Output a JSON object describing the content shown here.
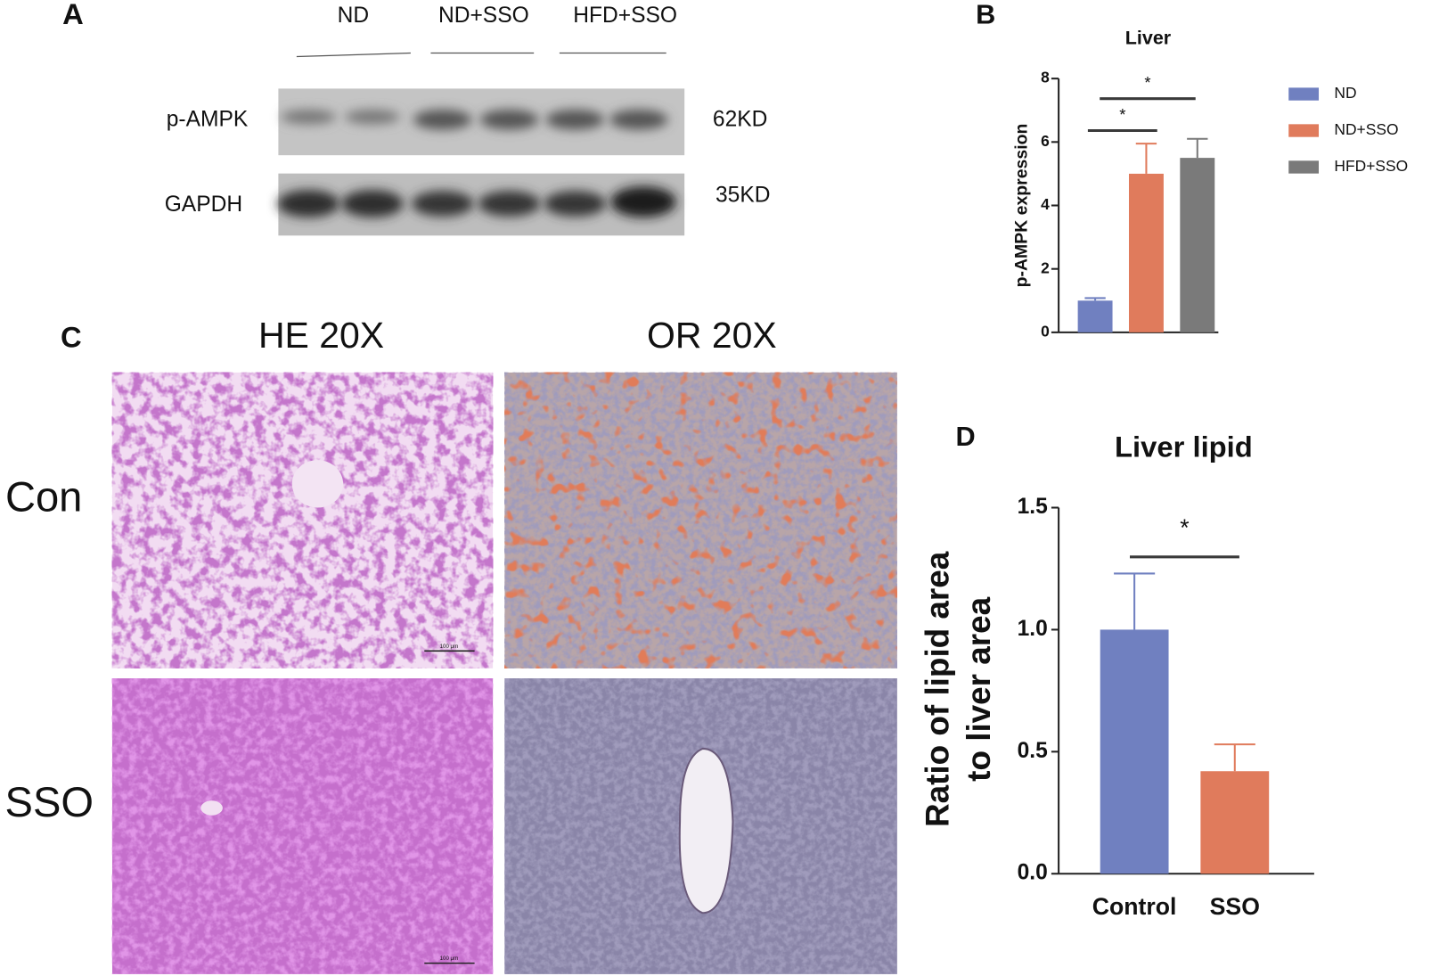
{
  "panels": {
    "a": "A",
    "b": "B",
    "c": "C",
    "d": "D"
  },
  "blot": {
    "groups": [
      "ND",
      "ND+SSO",
      "HFD+SSO"
    ],
    "proteins": [
      "p-AMPK",
      "GAPDH"
    ],
    "sizes": [
      "62KD",
      "35KD"
    ]
  },
  "histology": {
    "columns": [
      "HE 20X",
      "OR 20X"
    ],
    "rows": [
      "Con",
      "SSO"
    ],
    "scale_bar": "100 μm"
  },
  "chart_data": [
    {
      "type": "bar",
      "title": "Liver",
      "ylabel": [
        "p-AMPK expression"
      ],
      "categories": [
        "ND",
        "ND+SSO",
        "HFD+SSO"
      ],
      "values": [
        1.0,
        5.0,
        5.5
      ],
      "errors": [
        0.08,
        0.95,
        0.6
      ],
      "colors": [
        "#7080c0",
        "#e07b5c",
        "#7a7a7a"
      ],
      "ylim": [
        0,
        8
      ],
      "yticks": [
        0,
        2,
        4,
        6,
        8
      ],
      "annotations": [
        "*",
        "*"
      ],
      "legend": "right"
    },
    {
      "type": "bar",
      "title": "Liver lipid",
      "ylabel": [
        "Ratio of lipid area",
        "to liver area"
      ],
      "categories": [
        "Control",
        "SSO"
      ],
      "values": [
        1.0,
        0.42
      ],
      "errors": [
        0.23,
        0.11
      ],
      "colors": [
        "#7080c0",
        "#e07b5c"
      ],
      "ylim": [
        0,
        1.5
      ],
      "yticks": [
        {
          "value": 0,
          "label": "0.0"
        },
        {
          "value": 0.5,
          "label": "0.5"
        },
        {
          "value": 1,
          "label": "1.0"
        },
        {
          "value": 1.5,
          "label": "1.5"
        }
      ],
      "annotations": [
        "*"
      ]
    }
  ]
}
